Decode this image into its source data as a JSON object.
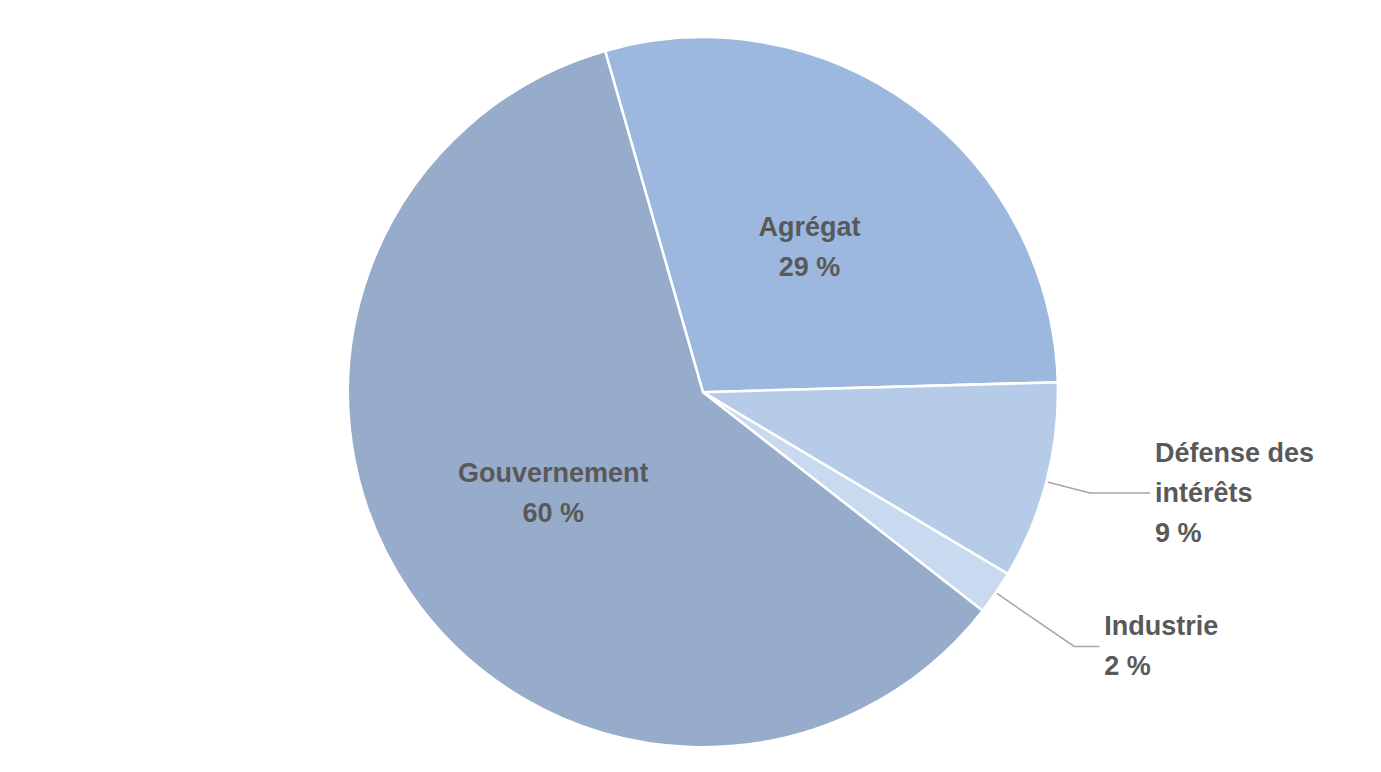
{
  "chart_data": {
    "type": "pie",
    "categories": [
      "Agrégat",
      "Défense des intérêts",
      "Industrie",
      "Gouvernement"
    ],
    "values": [
      29,
      9,
      2,
      60
    ],
    "value_labels": [
      "29 %",
      "9 %",
      "2 %",
      "60 %"
    ],
    "colors": [
      "#9cb8df",
      "#b5cbe8",
      "#c9d9ef",
      "#97abca"
    ],
    "data_labels": true,
    "legend": false
  }
}
